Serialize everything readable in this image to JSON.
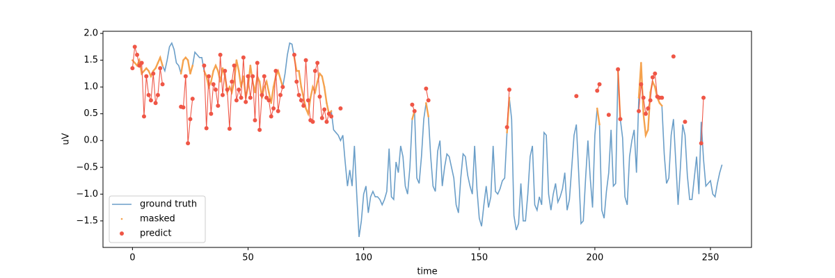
{
  "chart_data": {
    "type": "line",
    "xlabel": "time",
    "ylabel": "uV",
    "xlim": [
      -12.75,
      267.75
    ],
    "ylim": [
      -1.995,
      2.04
    ],
    "xticks": [
      0,
      50,
      100,
      150,
      200,
      250
    ],
    "yticks": [
      {
        "value": -1.5,
        "label": "−1.5"
      },
      {
        "value": -1.0,
        "label": "−1.0"
      },
      {
        "value": -0.5,
        "label": "−0.5"
      },
      {
        "value": 0.0,
        "label": "0.0"
      },
      {
        "value": 0.5,
        "label": "0.5"
      },
      {
        "value": 1.0,
        "label": "1.0"
      },
      {
        "value": 1.5,
        "label": "1.5"
      },
      {
        "value": 2.0,
        "label": "2.0"
      }
    ],
    "legend": "lower left",
    "series": [
      {
        "name": "ground truth",
        "color": "#6a9ec8",
        "marker": null,
        "x": [
          0,
          1,
          2,
          3,
          4,
          5,
          6,
          7,
          8,
          9,
          10,
          11,
          12,
          13,
          14,
          15,
          16,
          17,
          18,
          19,
          20,
          21,
          22,
          23,
          24,
          25,
          26,
          27,
          28,
          29,
          30,
          31,
          32,
          33,
          34,
          35,
          36,
          37,
          38,
          39,
          40,
          41,
          42,
          43,
          44,
          45,
          46,
          47,
          48,
          49,
          50,
          51,
          52,
          53,
          54,
          55,
          56,
          57,
          58,
          59,
          60,
          61,
          62,
          63,
          64,
          65,
          66,
          67,
          68,
          69,
          70,
          71,
          72,
          73,
          74,
          75,
          76,
          77,
          78,
          79,
          80,
          81,
          82,
          83,
          84,
          85,
          86,
          87,
          88,
          89,
          90,
          91,
          92,
          93,
          94,
          95,
          96,
          97,
          98,
          99,
          100,
          101,
          102,
          103,
          104,
          105,
          106,
          107,
          108,
          109,
          110,
          111,
          112,
          113,
          114,
          115,
          116,
          117,
          118,
          119,
          120,
          121,
          122,
          123,
          124,
          125,
          126,
          127,
          128,
          129,
          130,
          131,
          132,
          133,
          134,
          135,
          136,
          137,
          138,
          139,
          140,
          141,
          142,
          143,
          144,
          145,
          146,
          147,
          148,
          149,
          150,
          151,
          152,
          153,
          154,
          155,
          156,
          157,
          158,
          159,
          160,
          161,
          162,
          163,
          164,
          165,
          166,
          167,
          168,
          169,
          170,
          171,
          172,
          173,
          174,
          175,
          176,
          177,
          178,
          179,
          180,
          181,
          182,
          183,
          184,
          185,
          186,
          187,
          188,
          189,
          190,
          191,
          192,
          193,
          194,
          195,
          196,
          197,
          198,
          199,
          200,
          201,
          202,
          203,
          204,
          205,
          206,
          207,
          208,
          209,
          210,
          211,
          212,
          213,
          214,
          215,
          216,
          217,
          218,
          219,
          220,
          221,
          222,
          223,
          224,
          225,
          226,
          227,
          228,
          229,
          230,
          231,
          232,
          233,
          234,
          235,
          236,
          237,
          238,
          239,
          240,
          241,
          242,
          243,
          244,
          245,
          246,
          247,
          248,
          249,
          250,
          251,
          252,
          253,
          254,
          255
        ],
        "values": [
          1.5,
          1.45,
          1.4,
          1.5,
          1.25,
          1.3,
          1.35,
          1.3,
          1.2,
          1.3,
          1.35,
          1.45,
          1.55,
          1.4,
          1.3,
          1.5,
          1.75,
          1.82,
          1.7,
          1.45,
          1.4,
          1.25,
          1.5,
          1.55,
          1.5,
          1.25,
          1.4,
          1.65,
          1.6,
          1.55,
          1.55,
          1.3,
          1.2,
          1.0,
          1.1,
          1.3,
          1.4,
          1.3,
          1.1,
          1.35,
          1.2,
          0.9,
          1.0,
          0.9,
          1.1,
          1.5,
          1.3,
          1.0,
          1.2,
          0.8,
          1.0,
          1.4,
          1.1,
          0.9,
          1.2,
          1.1,
          0.8,
          1.0,
          1.1,
          0.9,
          0.7,
          1.0,
          1.2,
          1.3,
          1.15,
          1.0,
          1.25,
          1.6,
          1.82,
          1.8,
          1.55,
          1.3,
          1.3,
          1.0,
          0.8,
          0.6,
          0.5,
          0.8,
          1.0,
          0.9,
          1.1,
          1.25,
          1.2,
          1.0,
          0.7,
          0.5,
          0.55,
          0.2,
          0.15,
          0.1,
          0.0,
          0.1,
          -0.4,
          -0.85,
          -0.55,
          -0.85,
          -0.1,
          -1.0,
          -1.8,
          -1.5,
          -1.0,
          -0.85,
          -1.35,
          -1.05,
          -0.95,
          -1.05,
          -1.05,
          -1.1,
          -1.2,
          -1.1,
          -0.95,
          -0.15,
          -1.05,
          -1.1,
          -0.4,
          -0.6,
          -0.1,
          -0.3,
          -0.85,
          -1.0,
          -0.5,
          0.4,
          0.55,
          -0.7,
          -0.8,
          -0.3,
          0.4,
          0.7,
          0.45,
          -0.3,
          -0.85,
          -0.95,
          -0.2,
          0.0,
          -0.85,
          -0.5,
          -0.25,
          -0.3,
          -0.5,
          -0.7,
          -1.2,
          -1.35,
          -0.7,
          -0.25,
          -0.3,
          -0.65,
          -0.85,
          -1.0,
          -0.1,
          -0.9,
          -1.45,
          -1.6,
          -1.2,
          -0.85,
          -1.25,
          -1.05,
          -0.1,
          -0.95,
          -1.0,
          -0.9,
          -0.75,
          -0.7,
          0.15,
          0.8,
          0.4,
          -1.4,
          -1.67,
          -1.55,
          -0.8,
          -1.5,
          -1.5,
          -1.0,
          -0.3,
          -0.1,
          -1.2,
          -1.3,
          -1.05,
          -1.2,
          0.15,
          0.1,
          -1.0,
          -1.3,
          -1.0,
          -0.8,
          -1.15,
          -1.05,
          -0.9,
          -0.6,
          -1.3,
          -1.1,
          -0.5,
          0.1,
          0.3,
          -0.6,
          -1.55,
          -1.5,
          -0.7,
          0.0,
          -0.7,
          -1.25,
          0.1,
          0.6,
          0.3,
          -1.3,
          -1.45,
          -0.95,
          -0.6,
          0.2,
          -0.85,
          -0.8,
          1.3,
          0.4,
          0.05,
          -1.05,
          -1.2,
          -0.3,
          0.0,
          0.2,
          -0.6,
          0.8,
          1.45,
          0.5,
          0.1,
          0.2,
          0.9,
          1.1,
          1.0,
          0.8,
          0.7,
          0.65,
          -0.25,
          -0.8,
          -0.7,
          0.1,
          0.4,
          -0.4,
          -1.2,
          -0.5,
          0.3,
          0.1,
          -0.65,
          -1.1,
          -1.1,
          -0.7,
          -0.3,
          -1.0,
          0.35,
          -0.35,
          -0.85,
          -0.8,
          -0.75,
          -1.0,
          -1.05,
          -0.8,
          -0.6,
          -0.45
        ]
      },
      {
        "name": "masked",
        "color": "#f5a24d",
        "marker": ".",
        "x": [
          0,
          1,
          2,
          3,
          4,
          5,
          6,
          7,
          8,
          9,
          10,
          11,
          12,
          13,
          14,
          21,
          22,
          23,
          24,
          25,
          26,
          27,
          31,
          32,
          33,
          34,
          35,
          36,
          37,
          38,
          39,
          40,
          41,
          42,
          43,
          44,
          45,
          46,
          47,
          48,
          49,
          50,
          51,
          52,
          53,
          54,
          55,
          56,
          57,
          58,
          59,
          60,
          61,
          62,
          63,
          64,
          65,
          66,
          70,
          71,
          72,
          73,
          74,
          75,
          76,
          77,
          78,
          79,
          80,
          81,
          82,
          83,
          84,
          85,
          86,
          87,
          121,
          122,
          123,
          127,
          128,
          129,
          162,
          163,
          164,
          201,
          202,
          203,
          210,
          211,
          212,
          219,
          220,
          221,
          222,
          223,
          224,
          225,
          226,
          227,
          228,
          229
        ],
        "values": [
          1.5,
          1.45,
          1.4,
          1.5,
          1.25,
          1.3,
          1.35,
          1.3,
          1.2,
          1.3,
          1.35,
          1.45,
          1.55,
          1.4,
          null,
          1.25,
          1.5,
          1.55,
          1.5,
          1.25,
          1.4,
          null,
          1.3,
          1.2,
          1.0,
          1.1,
          1.3,
          1.4,
          1.3,
          1.1,
          1.35,
          1.2,
          0.9,
          1.0,
          0.9,
          1.1,
          1.5,
          1.3,
          1.0,
          1.2,
          0.8,
          1.0,
          1.4,
          1.1,
          0.9,
          1.2,
          1.1,
          0.8,
          1.0,
          1.1,
          0.9,
          0.7,
          1.0,
          1.2,
          1.3,
          1.15,
          1.0,
          null,
          1.55,
          1.3,
          1.3,
          1.0,
          0.8,
          0.6,
          0.5,
          0.8,
          1.0,
          0.9,
          1.1,
          1.25,
          1.2,
          1.0,
          0.7,
          0.5,
          0.55,
          null,
          0.4,
          0.55,
          null,
          0.7,
          0.45,
          null,
          0.15,
          0.8,
          null,
          0.6,
          0.3,
          null,
          1.3,
          0.4,
          null,
          0.8,
          1.45,
          0.5,
          0.1,
          0.2,
          0.9,
          1.1,
          1.0,
          0.8,
          0.7,
          0.65
        ]
      },
      {
        "name": "predict",
        "color": "#ef5646",
        "marker": "o",
        "x": [
          0,
          1,
          2,
          3,
          4,
          5,
          6,
          7,
          8,
          9,
          10,
          11,
          12,
          13,
          14,
          21,
          22,
          23,
          24,
          25,
          26,
          27,
          31,
          32,
          33,
          34,
          35,
          36,
          37,
          38,
          39,
          40,
          41,
          42,
          43,
          44,
          45,
          46,
          47,
          48,
          49,
          50,
          51,
          52,
          53,
          54,
          55,
          56,
          57,
          58,
          59,
          60,
          61,
          62,
          63,
          64,
          65,
          66,
          70,
          71,
          72,
          73,
          74,
          75,
          76,
          77,
          78,
          79,
          80,
          81,
          82,
          83,
          84,
          85,
          86,
          87,
          90,
          91,
          121,
          122,
          123,
          127,
          128,
          129,
          162,
          163,
          164,
          192,
          193,
          201,
          202,
          203,
          206,
          207,
          210,
          211,
          212,
          219,
          220,
          221,
          222,
          223,
          224,
          225,
          226,
          227,
          228,
          229,
          230,
          234,
          235,
          239,
          240,
          246,
          247
        ],
        "values": [
          1.35,
          1.75,
          1.6,
          1.4,
          1.45,
          0.45,
          1.2,
          0.85,
          0.75,
          1.25,
          0.7,
          0.85,
          1.35,
          1.05,
          null,
          0.63,
          0.62,
          1.2,
          -0.05,
          0.4,
          0.78,
          null,
          1.4,
          0.23,
          1.2,
          0.5,
          1.05,
          0.95,
          0.65,
          1.6,
          0.85,
          1.3,
          0.95,
          0.22,
          1.1,
          1.4,
          0.75,
          0.95,
          0.8,
          1.55,
          0.72,
          1.2,
          0.8,
          1.2,
          0.38,
          1.45,
          0.2,
          0.85,
          1.2,
          0.8,
          0.75,
          0.45,
          0.6,
          1.3,
          0.55,
          0.85,
          1.0,
          null,
          1.6,
          1.1,
          0.85,
          0.75,
          0.65,
          1.5,
          0.75,
          0.38,
          0.35,
          1.3,
          1.45,
          0.82,
          0.42,
          0.58,
          0.35,
          0.5,
          0.45,
          null,
          0.6,
          null,
          0.67,
          0.55,
          null,
          0.97,
          0.75,
          null,
          0.25,
          0.95,
          null,
          0.83,
          null,
          0.93,
          1.05,
          null,
          0.48,
          null,
          1.33,
          0.4,
          null,
          0.55,
          1.05,
          0.8,
          0.5,
          0.6,
          0.75,
          1.18,
          1.25,
          0.82,
          0.8,
          0.8,
          null,
          1.57,
          null,
          0.35,
          null,
          -0.05,
          0.8
        ]
      }
    ]
  }
}
